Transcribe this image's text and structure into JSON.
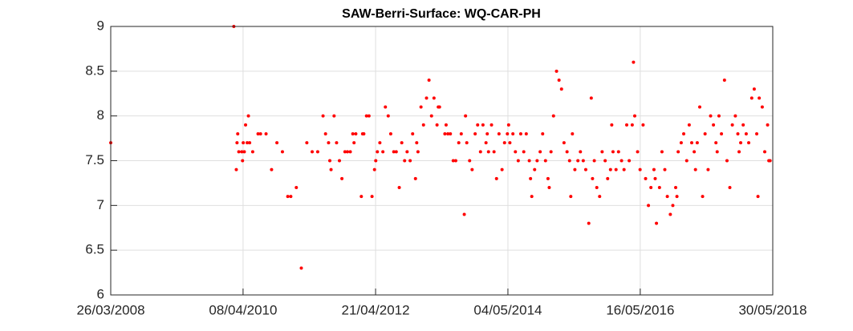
{
  "chart_data": {
    "type": "scatter",
    "title": "SAW-Berri-Surface: WQ-CAR-PH",
    "color": "#ff0000",
    "grid": true,
    "xlim": [
      "2008-03-26",
      "2018-05-30"
    ],
    "xticks": [
      {
        "value": "2008-03-26",
        "label": "26/03/2008"
      },
      {
        "value": "2010-04-08",
        "label": "08/04/2010"
      },
      {
        "value": "2012-04-21",
        "label": "21/04/2012"
      },
      {
        "value": "2014-05-04",
        "label": "04/05/2014"
      },
      {
        "value": "2016-05-16",
        "label": "16/05/2016"
      },
      {
        "value": "2018-05-30",
        "label": "30/05/2018"
      }
    ],
    "ylim": [
      6,
      9
    ],
    "yticks": [
      6,
      6.5,
      7,
      7.5,
      8,
      8.5,
      9
    ],
    "x": [
      "2008-03-26",
      "2010-02-15",
      "2010-03-01",
      "2010-03-05",
      "2010-03-09",
      "2010-03-15",
      "2010-04-01",
      "2010-04-05",
      "2010-04-09",
      "2010-04-15",
      "2010-04-22",
      "2010-05-01",
      "2010-05-08",
      "2010-05-15",
      "2010-06-01",
      "2010-07-01",
      "2010-07-15",
      "2010-08-15",
      "2010-09-15",
      "2010-10-15",
      "2010-11-15",
      "2010-12-15",
      "2011-01-01",
      "2011-02-01",
      "2011-03-01",
      "2011-04-01",
      "2011-05-01",
      "2011-06-01",
      "2011-07-01",
      "2011-07-15",
      "2011-08-01",
      "2011-08-08",
      "2011-08-15",
      "2011-09-01",
      "2011-09-15",
      "2011-10-01",
      "2011-10-15",
      "2011-11-01",
      "2011-11-15",
      "2011-12-01",
      "2011-12-15",
      "2011-12-22",
      "2012-01-01",
      "2012-02-01",
      "2012-02-08",
      "2012-02-15",
      "2012-03-01",
      "2012-03-15",
      "2012-04-01",
      "2012-04-15",
      "2012-04-22",
      "2012-05-01",
      "2012-05-15",
      "2012-06-01",
      "2012-06-15",
      "2012-07-01",
      "2012-07-15",
      "2012-08-01",
      "2012-08-15",
      "2012-09-01",
      "2012-09-15",
      "2012-10-01",
      "2012-10-15",
      "2012-11-01",
      "2012-11-15",
      "2012-12-01",
      "2012-12-08",
      "2012-12-15",
      "2013-01-01",
      "2013-01-15",
      "2013-02-01",
      "2013-02-15",
      "2013-03-01",
      "2013-03-15",
      "2013-04-01",
      "2013-04-08",
      "2013-04-15",
      "2013-05-15",
      "2013-05-22",
      "2013-06-01",
      "2013-06-15",
      "2013-07-01",
      "2013-07-15",
      "2013-08-01",
      "2013-08-15",
      "2013-09-01",
      "2013-09-08",
      "2013-09-15",
      "2013-10-01",
      "2013-10-15",
      "2013-11-01",
      "2013-11-15",
      "2013-12-01",
      "2013-12-15",
      "2014-01-01",
      "2014-01-08",
      "2014-01-15",
      "2014-02-01",
      "2014-02-15",
      "2014-03-01",
      "2014-03-15",
      "2014-04-01",
      "2014-04-15",
      "2014-05-01",
      "2014-05-08",
      "2014-05-15",
      "2014-06-01",
      "2014-06-15",
      "2014-07-01",
      "2014-07-15",
      "2014-08-01",
      "2014-08-15",
      "2014-09-01",
      "2014-09-08",
      "2014-09-15",
      "2014-10-01",
      "2014-10-15",
      "2014-11-01",
      "2014-11-15",
      "2014-12-01",
      "2014-12-15",
      "2014-12-22",
      "2015-01-01",
      "2015-01-15",
      "2015-02-01",
      "2015-02-15",
      "2015-03-01",
      "2015-03-15",
      "2015-04-01",
      "2015-04-15",
      "2015-04-22",
      "2015-05-01",
      "2015-05-15",
      "2015-06-01",
      "2015-06-15",
      "2015-07-01",
      "2015-07-15",
      "2015-08-01",
      "2015-08-15",
      "2015-08-22",
      "2015-09-01",
      "2015-09-15",
      "2015-10-01",
      "2015-10-15",
      "2015-11-01",
      "2015-11-15",
      "2015-12-01",
      "2015-12-08",
      "2015-12-15",
      "2016-01-01",
      "2016-01-15",
      "2016-02-01",
      "2016-02-15",
      "2016-03-01",
      "2016-03-15",
      "2016-04-01",
      "2016-04-08",
      "2016-04-15",
      "2016-05-01",
      "2016-05-15",
      "2016-06-01",
      "2016-06-15",
      "2016-07-01",
      "2016-07-15",
      "2016-08-01",
      "2016-08-08",
      "2016-08-15",
      "2016-09-01",
      "2016-09-15",
      "2016-10-01",
      "2016-10-15",
      "2016-11-01",
      "2016-11-15",
      "2016-12-01",
      "2016-12-08",
      "2016-12-15",
      "2017-01-01",
      "2017-01-15",
      "2017-02-01",
      "2017-02-15",
      "2017-03-01",
      "2017-03-15",
      "2017-03-22",
      "2017-04-01",
      "2017-04-15",
      "2017-05-01",
      "2017-05-15",
      "2017-06-01",
      "2017-06-15",
      "2017-07-01",
      "2017-07-15",
      "2017-07-22",
      "2017-08-01",
      "2017-08-15",
      "2017-09-01",
      "2017-09-15",
      "2017-10-01",
      "2017-10-15",
      "2017-11-01",
      "2017-11-15",
      "2017-11-22",
      "2017-12-01",
      "2017-12-15",
      "2018-01-01",
      "2018-01-15",
      "2018-02-01",
      "2018-02-15",
      "2018-03-01",
      "2018-03-08",
      "2018-03-15",
      "2018-04-01",
      "2018-04-15",
      "2018-05-01",
      "2018-05-08",
      "2018-05-15"
    ],
    "values": [
      7.7,
      9.0,
      7.4,
      7.7,
      7.8,
      7.6,
      7.6,
      7.5,
      7.7,
      7.6,
      7.9,
      7.7,
      8.0,
      7.7,
      7.6,
      7.8,
      7.8,
      7.8,
      7.4,
      7.7,
      7.6,
      7.1,
      7.1,
      7.2,
      6.3,
      7.7,
      7.6,
      7.6,
      8.0,
      7.8,
      7.7,
      7.5,
      7.4,
      8.0,
      7.7,
      7.5,
      7.3,
      7.6,
      7.6,
      7.6,
      7.8,
      7.7,
      7.8,
      7.1,
      7.8,
      7.8,
      8.0,
      8.0,
      7.1,
      7.4,
      7.5,
      7.6,
      7.7,
      7.6,
      8.1,
      8.0,
      7.8,
      7.6,
      7.6,
      7.2,
      7.7,
      7.5,
      7.6,
      7.5,
      7.8,
      7.3,
      7.7,
      7.6,
      8.1,
      7.9,
      8.2,
      8.4,
      8.0,
      8.2,
      7.9,
      8.1,
      8.1,
      7.8,
      7.9,
      7.8,
      7.8,
      7.5,
      7.5,
      7.7,
      7.8,
      6.9,
      8.0,
      7.7,
      7.5,
      7.4,
      7.8,
      7.9,
      7.6,
      7.9,
      7.7,
      7.8,
      7.6,
      7.9,
      7.6,
      7.3,
      7.8,
      7.4,
      7.7,
      7.8,
      7.9,
      7.7,
      7.8,
      7.6,
      7.5,
      7.8,
      7.6,
      7.8,
      7.5,
      7.3,
      7.1,
      7.4,
      7.5,
      7.6,
      7.8,
      7.5,
      7.3,
      7.2,
      7.6,
      8.0,
      8.5,
      8.4,
      8.3,
      7.7,
      7.6,
      7.5,
      7.1,
      7.8,
      7.4,
      7.5,
      7.6,
      7.5,
      7.4,
      6.8,
      8.2,
      7.3,
      7.5,
      7.2,
      7.1,
      7.6,
      7.5,
      7.3,
      7.4,
      7.9,
      7.6,
      7.4,
      7.6,
      7.5,
      7.4,
      7.9,
      7.5,
      7.9,
      8.6,
      8.0,
      7.6,
      7.4,
      7.9,
      7.3,
      7.0,
      7.2,
      7.4,
      7.3,
      6.8,
      7.2,
      7.6,
      7.4,
      7.1,
      6.9,
      7.0,
      7.2,
      7.1,
      7.6,
      7.7,
      7.8,
      7.5,
      7.9,
      7.7,
      7.6,
      7.4,
      7.7,
      8.1,
      7.1,
      7.8,
      7.4,
      8.0,
      7.9,
      7.7,
      7.6,
      8.0,
      7.8,
      8.4,
      7.5,
      7.2,
      7.9,
      8.0,
      7.8,
      7.6,
      7.7,
      7.9,
      7.8,
      7.7,
      8.2,
      8.3,
      7.8,
      7.1,
      8.2,
      8.1,
      7.6,
      7.9,
      7.5,
      7.5
    ]
  }
}
